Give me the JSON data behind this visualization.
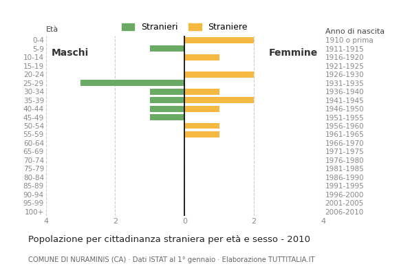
{
  "age_groups": [
    "0-4",
    "5-9",
    "10-14",
    "15-19",
    "20-24",
    "25-29",
    "30-34",
    "35-39",
    "40-44",
    "45-49",
    "50-54",
    "55-59",
    "60-64",
    "65-69",
    "70-74",
    "75-79",
    "80-84",
    "85-89",
    "90-94",
    "95-99",
    "100+"
  ],
  "birth_years": [
    "2006-2010",
    "2001-2005",
    "1996-2000",
    "1991-1995",
    "1986-1990",
    "1981-1985",
    "1976-1980",
    "1971-1975",
    "1966-1970",
    "1961-1965",
    "1956-1960",
    "1951-1955",
    "1946-1950",
    "1941-1945",
    "1936-1940",
    "1931-1935",
    "1926-1930",
    "1921-1925",
    "1916-1920",
    "1911-1915",
    "1910 o prima"
  ],
  "males": [
    0,
    1,
    0,
    0,
    0,
    3,
    1,
    1,
    1,
    1,
    0,
    0,
    0,
    0,
    0,
    0,
    0,
    0,
    0,
    0,
    0
  ],
  "females": [
    2,
    0,
    1,
    0,
    2,
    0,
    1,
    2,
    1,
    0,
    1,
    1,
    0,
    0,
    0,
    0,
    0,
    0,
    0,
    0,
    0
  ],
  "male_color": "#6aaa64",
  "female_color": "#f5b942",
  "xlim": 4,
  "title": "Popolazione per cittadinanza straniera per età e sesso - 2010",
  "subtitle": "COMUNE DI NURAMINIS (CA) · Dati ISTAT al 1° gennaio · Elaborazione TUTTITALIA.IT",
  "legend_male": "Stranieri",
  "legend_female": "Straniere",
  "label_left": "Maschi",
  "label_right": "Femmine",
  "ylabel_left": "Età",
  "ylabel_right": "Anno di nascita",
  "background_color": "#ffffff",
  "grid_color": "#cccccc",
  "tick_label_color": "#888888",
  "axis_label_color": "#444444",
  "title_color": "#222222",
  "subtitle_color": "#666666"
}
